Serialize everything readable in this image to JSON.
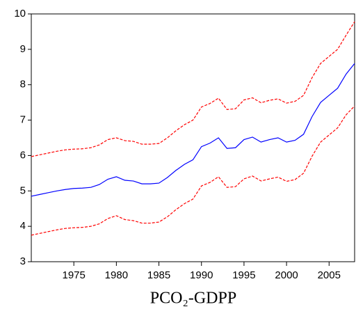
{
  "chart_data": {
    "type": "line",
    "title": "PCO₂-GDPP",
    "x": [
      1970,
      1971,
      1972,
      1973,
      1974,
      1975,
      1976,
      1977,
      1978,
      1979,
      1980,
      1981,
      1982,
      1983,
      1984,
      1985,
      1986,
      1987,
      1988,
      1989,
      1990,
      1991,
      1992,
      1993,
      1994,
      1995,
      1996,
      1997,
      1998,
      1999,
      2000,
      2001,
      2002,
      2003,
      2004,
      2005,
      2006,
      2007,
      2008
    ],
    "xlim": [
      1970,
      2008
    ],
    "xticks": [
      1975,
      1980,
      1985,
      1990,
      1995,
      2000,
      2005
    ],
    "ylim": [
      3,
      10
    ],
    "yticks": [
      3,
      4,
      5,
      6,
      7,
      8,
      9,
      10
    ],
    "series": [
      {
        "color": "#0000ff",
        "dashed": false,
        "values": [
          4.85,
          4.9,
          4.95,
          5.0,
          5.04,
          5.07,
          5.08,
          5.1,
          5.18,
          5.33,
          5.4,
          5.3,
          5.28,
          5.2,
          5.2,
          5.22,
          5.38,
          5.58,
          5.75,
          5.88,
          6.25,
          6.35,
          6.5,
          6.2,
          6.22,
          6.45,
          6.52,
          6.38,
          6.45,
          6.5,
          6.38,
          6.43,
          6.6,
          7.1,
          7.5,
          7.7,
          7.9,
          8.3,
          8.6
        ]
      },
      {
        "color": "#ff0000",
        "dashed": true,
        "values": [
          5.97,
          6.02,
          6.07,
          6.12,
          6.16,
          6.18,
          6.19,
          6.22,
          6.3,
          6.45,
          6.5,
          6.42,
          6.4,
          6.32,
          6.32,
          6.34,
          6.5,
          6.7,
          6.87,
          7.0,
          7.37,
          7.47,
          7.62,
          7.3,
          7.32,
          7.57,
          7.63,
          7.49,
          7.56,
          7.6,
          7.48,
          7.53,
          7.7,
          8.2,
          8.6,
          8.8,
          9.0,
          9.4,
          9.78
        ]
      },
      {
        "color": "#ff0000",
        "dashed": true,
        "values": [
          3.75,
          3.8,
          3.85,
          3.9,
          3.94,
          3.96,
          3.97,
          4.0,
          4.07,
          4.22,
          4.3,
          4.19,
          4.16,
          4.09,
          4.09,
          4.12,
          4.27,
          4.47,
          4.64,
          4.77,
          5.14,
          5.24,
          5.4,
          5.1,
          5.12,
          5.34,
          5.42,
          5.28,
          5.34,
          5.39,
          5.27,
          5.32,
          5.5,
          5.98,
          6.38,
          6.58,
          6.78,
          7.15,
          7.4
        ]
      }
    ]
  }
}
